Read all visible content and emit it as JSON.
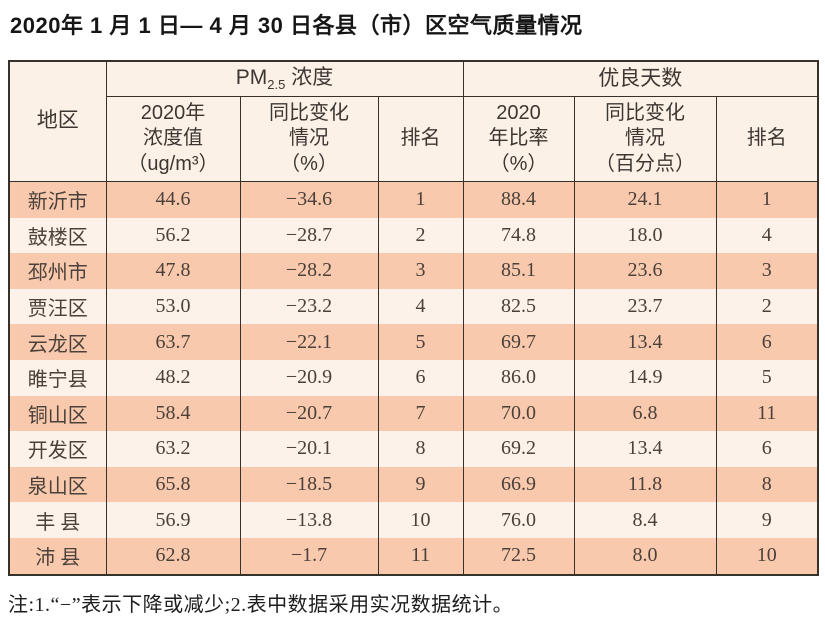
{
  "page": {
    "title": "2020年 1 月 1 日— 4 月 30 日各县（市）区空气质量情况",
    "note": "注:1.“−”表示下降或减少;2.表中数据采用实况数据统计。"
  },
  "colors": {
    "row_odd": "#f9c9ad",
    "row_even": "#fdf2ea",
    "header_bg": "#fcf1e6",
    "border": "#37312c",
    "text": "#4a413b"
  },
  "table": {
    "header": {
      "region": "地区",
      "pm25_group": {
        "prefix": "PM",
        "sub": "2.5",
        "suffix": " 浓度"
      },
      "good_days_group": "优良天数",
      "conc": {
        "l1": "2020年",
        "l2": "浓度值",
        "l3": "（ug/m³）"
      },
      "conc_change": {
        "l1": "同比变化",
        "l2": "情况",
        "l3": "（%）"
      },
      "rank_pm25": "排名",
      "ratio": {
        "l1": "2020",
        "l2": "年比率",
        "l3": "（%）"
      },
      "ratio_change": {
        "l1": "同比变化",
        "l2": "情况",
        "l3": "（百分点）"
      },
      "rank_days": "排名"
    },
    "rows": [
      {
        "region": "新沂市",
        "conc": "44.6",
        "conc_change": "−34.6",
        "conc_rank": "1",
        "ratio": "88.4",
        "ratio_change": "24.1",
        "ratio_rank": "1"
      },
      {
        "region": "鼓楼区",
        "conc": "56.2",
        "conc_change": "−28.7",
        "conc_rank": "2",
        "ratio": "74.8",
        "ratio_change": "18.0",
        "ratio_rank": "4"
      },
      {
        "region": "邳州市",
        "conc": "47.8",
        "conc_change": "−28.2",
        "conc_rank": "3",
        "ratio": "85.1",
        "ratio_change": "23.6",
        "ratio_rank": "3"
      },
      {
        "region": "贾汪区",
        "conc": "53.0",
        "conc_change": "−23.2",
        "conc_rank": "4",
        "ratio": "82.5",
        "ratio_change": "23.7",
        "ratio_rank": "2"
      },
      {
        "region": "云龙区",
        "conc": "63.7",
        "conc_change": "−22.1",
        "conc_rank": "5",
        "ratio": "69.7",
        "ratio_change": "13.4",
        "ratio_rank": "6"
      },
      {
        "region": "睢宁县",
        "conc": "48.2",
        "conc_change": "−20.9",
        "conc_rank": "6",
        "ratio": "86.0",
        "ratio_change": "14.9",
        "ratio_rank": "5"
      },
      {
        "region": "铜山区",
        "conc": "58.4",
        "conc_change": "−20.7",
        "conc_rank": "7",
        "ratio": "70.0",
        "ratio_change": "6.8",
        "ratio_rank": "11"
      },
      {
        "region": "开发区",
        "conc": "63.2",
        "conc_change": "−20.1",
        "conc_rank": "8",
        "ratio": "69.2",
        "ratio_change": "13.4",
        "ratio_rank": "6"
      },
      {
        "region": "泉山区",
        "conc": "65.8",
        "conc_change": "−18.5",
        "conc_rank": "9",
        "ratio": "66.9",
        "ratio_change": "11.8",
        "ratio_rank": "8"
      },
      {
        "region": "丰 县",
        "conc": "56.9",
        "conc_change": "−13.8",
        "conc_rank": "10",
        "ratio": "76.0",
        "ratio_change": "8.4",
        "ratio_rank": "9"
      },
      {
        "region": "沛 县",
        "conc": "62.8",
        "conc_change": "−1.7",
        "conc_rank": "11",
        "ratio": "72.5",
        "ratio_change": "8.0",
        "ratio_rank": "10"
      }
    ]
  }
}
